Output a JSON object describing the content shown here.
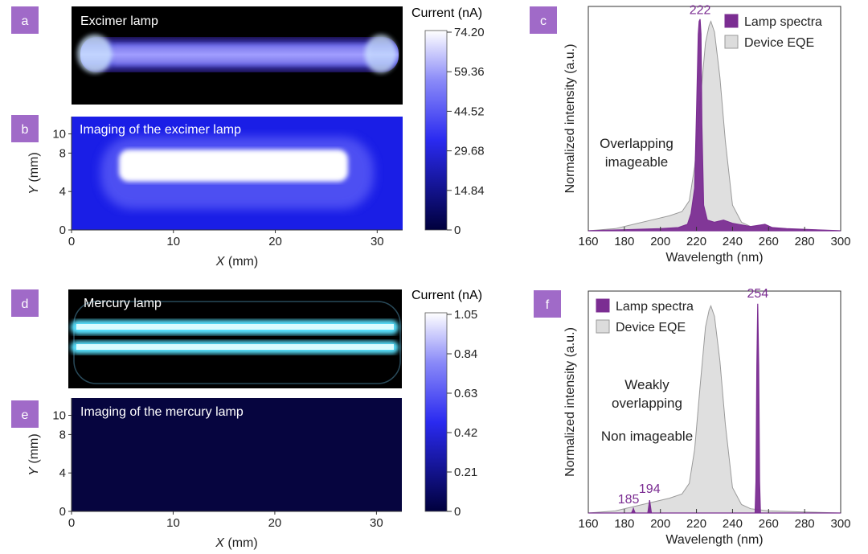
{
  "panel_labels": {
    "a": "a",
    "b": "b",
    "c": "c",
    "d": "d",
    "e": "e",
    "f": "f"
  },
  "colors": {
    "badge": "#a06ac8",
    "lamp": "#7b2d92",
    "eqe_fill": "#dcdcdc",
    "eqe_edge": "#9a9a9a",
    "cbar_low": "#00003c",
    "cbar_mid": "#2a2af0",
    "cbar_high": "#ffffff",
    "peak_label": "#7b2d92"
  },
  "panel_a": {
    "title": "Excimer lamp"
  },
  "panel_b": {
    "title": "Imaging of the excimer lamp"
  },
  "panel_d": {
    "title": "Mercury lamp"
  },
  "panel_e": {
    "title": "Imaging of the mercury lamp"
  },
  "colorbar_top": {
    "title": "Current (nA)",
    "ticks": [
      "74.20",
      "59.36",
      "44.52",
      "29.68",
      "14.84",
      "0"
    ]
  },
  "colorbar_bottom": {
    "title": "Current (nA)",
    "ticks": [
      "1.05",
      "0.84",
      "0.63",
      "0.42",
      "0.21",
      "0"
    ]
  },
  "map_axes": {
    "xlabel_var": "X",
    "ylabel_var": "Y",
    "unit": " (mm)",
    "xticks": [
      "0",
      "10",
      "20",
      "30"
    ],
    "yticks": [
      "0",
      "4",
      "8",
      "10"
    ]
  },
  "chart_data": [
    {
      "id": "c",
      "type": "area",
      "xlabel": "Wavelength (nm)",
      "ylabel": "Normalized intensity (a.u.)",
      "xlim": [
        160,
        300
      ],
      "ylim": [
        0,
        1.05
      ],
      "xticks": [
        "160",
        "180",
        "200",
        "220",
        "240",
        "260",
        "280",
        "300"
      ],
      "legend": "top-right",
      "series": [
        {
          "name": "Lamp spectra",
          "x": [
            160,
            180,
            200,
            210,
            215,
            217,
            219,
            220,
            221,
            221.5,
            222,
            222.5,
            223,
            224,
            226,
            230,
            235,
            240,
            250,
            258,
            262,
            270,
            300
          ],
          "y": [
            0.0,
            0.005,
            0.01,
            0.015,
            0.03,
            0.08,
            0.2,
            0.55,
            0.92,
            0.98,
            0.99,
            0.92,
            0.5,
            0.12,
            0.05,
            0.04,
            0.05,
            0.035,
            0.02,
            0.03,
            0.015,
            0.01,
            0.0
          ]
        },
        {
          "name": "Device EQE",
          "x": [
            160,
            175,
            185,
            195,
            205,
            212,
            216,
            219,
            222,
            225,
            227,
            228,
            230,
            233,
            236,
            240,
            245,
            250,
            260,
            280,
            300
          ],
          "y": [
            0.0,
            0.01,
            0.03,
            0.05,
            0.07,
            0.09,
            0.14,
            0.3,
            0.6,
            0.88,
            0.96,
            0.98,
            0.93,
            0.72,
            0.42,
            0.12,
            0.04,
            0.02,
            0.01,
            0.005,
            0.0
          ]
        }
      ],
      "annotations": [
        {
          "text": "222",
          "x": 222
        },
        {
          "lines": [
            "Overlapping",
            "imageable"
          ]
        }
      ]
    },
    {
      "id": "f",
      "type": "area",
      "xlabel": "Wavelength (nm)",
      "ylabel": "Normalized intensity (a.u.)",
      "xlim": [
        160,
        300
      ],
      "ylim": [
        0,
        1.05
      ],
      "xticks": [
        "160",
        "180",
        "200",
        "220",
        "240",
        "260",
        "280",
        "300"
      ],
      "legend": "top-left",
      "series": [
        {
          "name": "Lamp spectra",
          "x": [
            160,
            184,
            185,
            186,
            193,
            194,
            195,
            252.5,
            253,
            253.5,
            254,
            254.5,
            255,
            255.5,
            300
          ],
          "y": [
            0.0,
            0.0,
            0.02,
            0.0,
            0.0,
            0.06,
            0.0,
            0.0,
            0.15,
            0.7,
            0.99,
            0.7,
            0.15,
            0.0,
            0.0
          ]
        },
        {
          "name": "Device EQE",
          "x": [
            160,
            175,
            185,
            195,
            205,
            212,
            216,
            219,
            222,
            225,
            227,
            228,
            230,
            233,
            236,
            240,
            245,
            250,
            260,
            280,
            300
          ],
          "y": [
            0.0,
            0.01,
            0.03,
            0.05,
            0.07,
            0.09,
            0.14,
            0.3,
            0.6,
            0.88,
            0.96,
            0.98,
            0.93,
            0.72,
            0.42,
            0.12,
            0.04,
            0.02,
            0.01,
            0.005,
            0.0
          ]
        }
      ],
      "annotations": [
        {
          "text": "254",
          "x": 254
        },
        {
          "text": "194",
          "x": 194
        },
        {
          "text": "185",
          "x": 185
        },
        {
          "lines": [
            "Weakly",
            "overlapping"
          ]
        },
        {
          "text": "Non imageable"
        }
      ]
    }
  ]
}
